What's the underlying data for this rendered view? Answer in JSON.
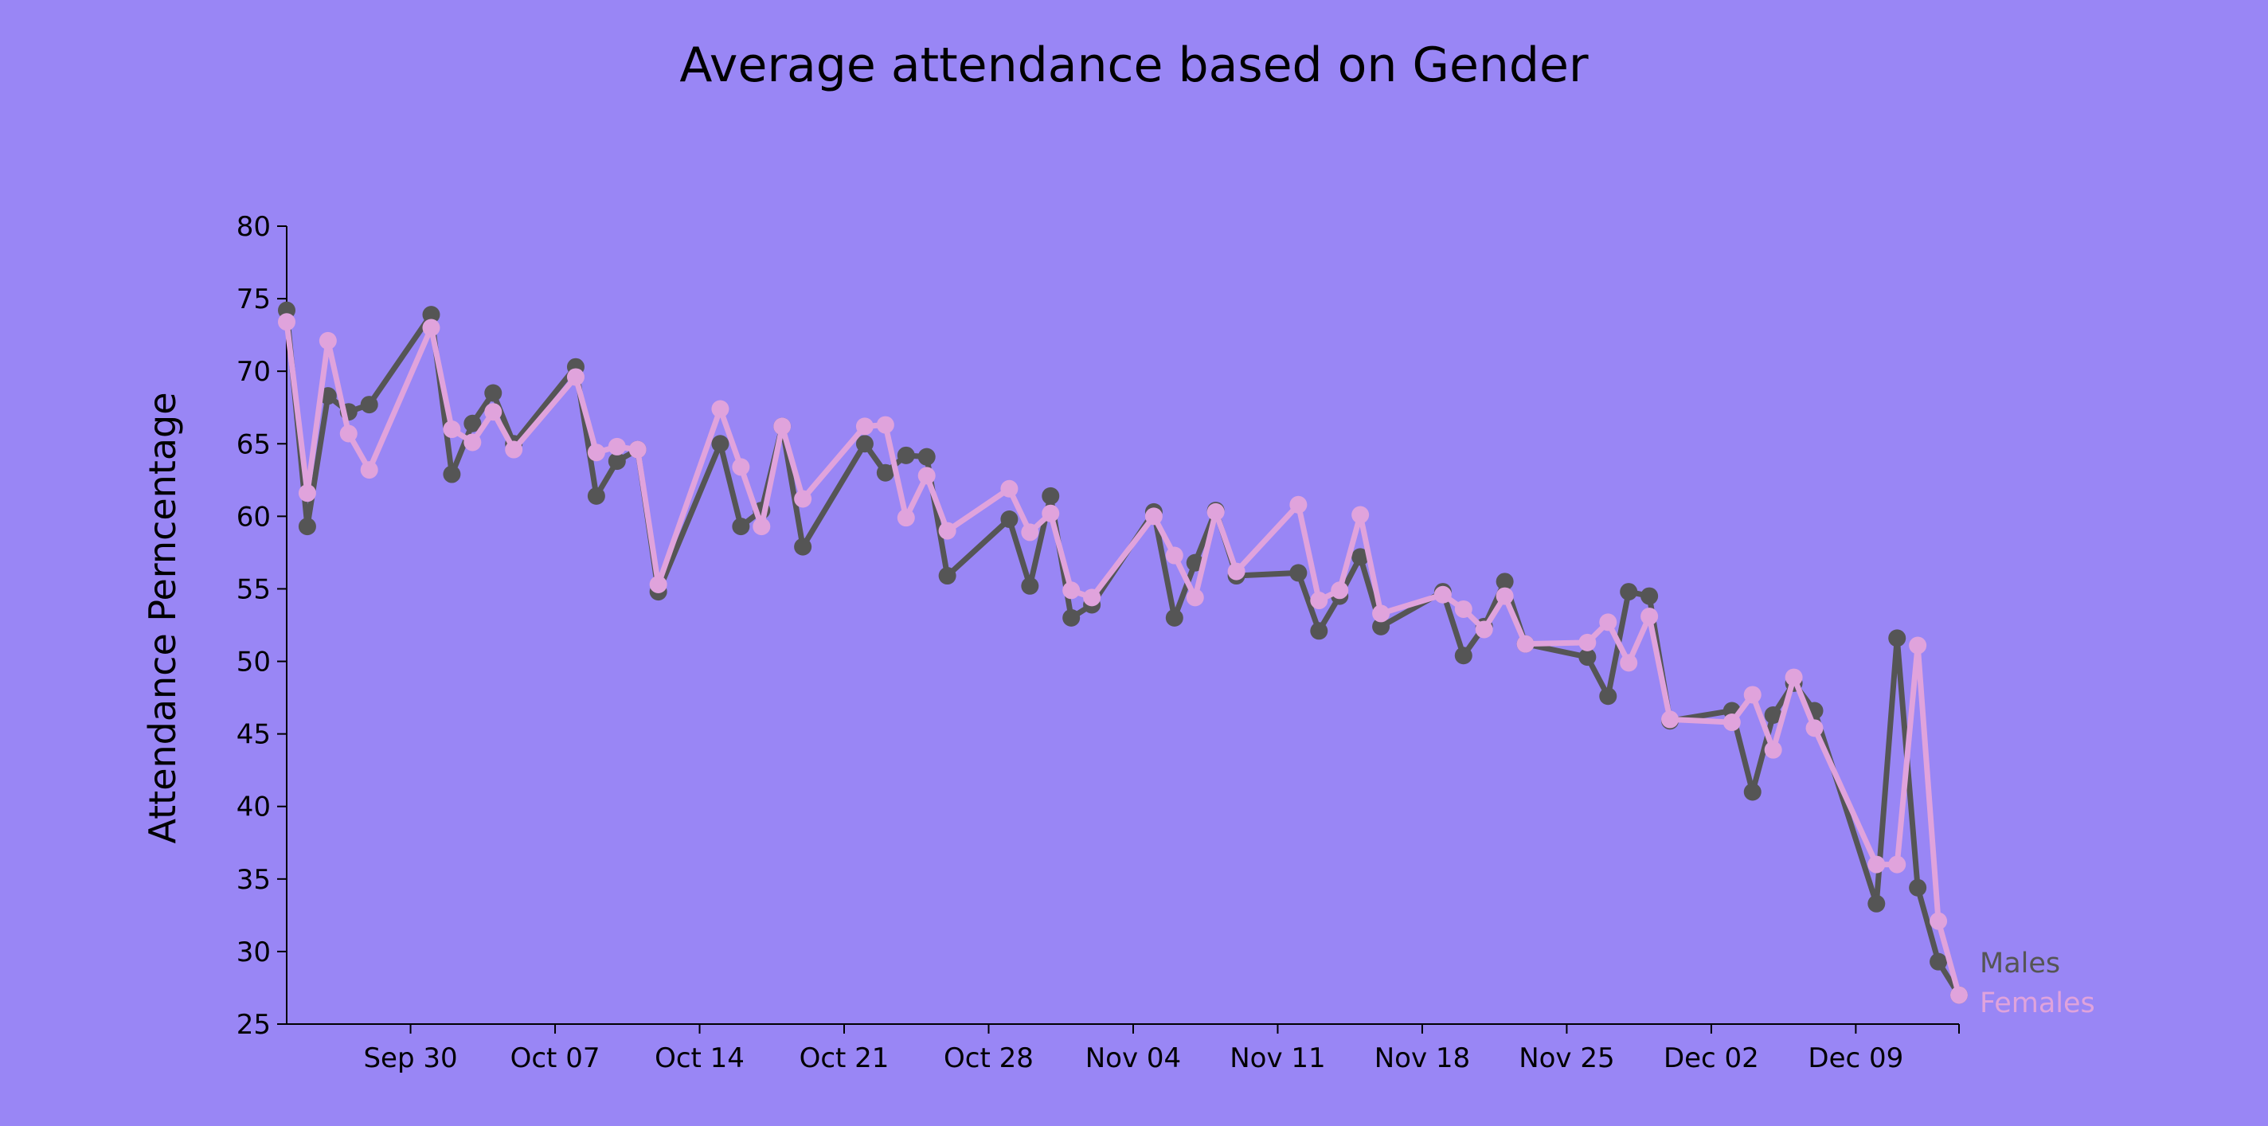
{
  "chart_data": {
    "type": "line",
    "title": "Average attendance based on Gender",
    "xlabel": "",
    "ylabel": "Attendance Perncentage",
    "ylim": [
      25,
      80
    ],
    "yticks": [
      25,
      30,
      35,
      40,
      45,
      50,
      55,
      60,
      65,
      70,
      75,
      80
    ],
    "xlim": [
      "2023-09-24",
      "2023-12-14"
    ],
    "xticks": [
      {
        "date": "2023-09-30",
        "label": "Sep 30"
      },
      {
        "date": "2023-10-07",
        "label": "Oct 07"
      },
      {
        "date": "2023-10-14",
        "label": "Oct 14"
      },
      {
        "date": "2023-10-21",
        "label": "Oct 21"
      },
      {
        "date": "2023-10-28",
        "label": "Oct 28"
      },
      {
        "date": "2023-11-04",
        "label": "Nov 04"
      },
      {
        "date": "2023-11-11",
        "label": "Nov 11"
      },
      {
        "date": "2023-11-18",
        "label": "Nov 18"
      },
      {
        "date": "2023-11-25",
        "label": "Nov 25"
      },
      {
        "date": "2023-12-02",
        "label": "Dec 02"
      },
      {
        "date": "2023-12-09",
        "label": "Dec 09"
      }
    ],
    "grid": false,
    "legend": "right-end",
    "x": [
      "2023-09-24",
      "2023-09-25",
      "2023-09-26",
      "2023-09-27",
      "2023-09-28",
      "2023-10-01",
      "2023-10-02",
      "2023-10-03",
      "2023-10-04",
      "2023-10-05",
      "2023-10-08",
      "2023-10-09",
      "2023-10-10",
      "2023-10-11",
      "2023-10-12",
      "2023-10-15",
      "2023-10-16",
      "2023-10-17",
      "2023-10-18",
      "2023-10-19",
      "2023-10-22",
      "2023-10-23",
      "2023-10-24",
      "2023-10-25",
      "2023-10-26",
      "2023-10-29",
      "2023-10-30",
      "2023-10-31",
      "2023-11-01",
      "2023-11-02",
      "2023-11-05",
      "2023-11-06",
      "2023-11-07",
      "2023-11-08",
      "2023-11-09",
      "2023-11-12",
      "2023-11-13",
      "2023-11-14",
      "2023-11-15",
      "2023-11-16",
      "2023-11-19",
      "2023-11-20",
      "2023-11-21",
      "2023-11-22",
      "2023-11-23",
      "2023-11-26",
      "2023-11-27",
      "2023-11-28",
      "2023-11-29",
      "2023-11-30",
      "2023-12-03",
      "2023-12-04",
      "2023-12-05",
      "2023-12-06",
      "2023-12-07",
      "2023-12-10",
      "2023-12-11",
      "2023-12-12",
      "2023-12-13",
      "2023-12-14"
    ],
    "series": [
      {
        "name": "Males",
        "color": "#555555",
        "values": [
          74.2,
          59.3,
          68.3,
          67.2,
          67.7,
          73.9,
          62.9,
          66.4,
          68.5,
          65.0,
          70.3,
          61.4,
          63.8,
          64.6,
          54.8,
          65.0,
          59.3,
          60.4,
          66.2,
          57.9,
          65.0,
          63.0,
          64.2,
          64.1,
          55.9,
          59.8,
          55.2,
          61.4,
          53.0,
          53.9,
          60.3,
          53.0,
          56.8,
          60.4,
          55.9,
          56.1,
          52.1,
          54.5,
          57.2,
          52.4,
          54.8,
          50.4,
          52.4,
          55.5,
          51.2,
          50.3,
          47.6,
          54.8,
          54.5,
          45.9,
          46.6,
          41.0,
          46.3,
          48.5,
          46.6,
          33.3,
          51.6,
          34.4,
          29.3,
          27.0
        ]
      },
      {
        "name": "Females",
        "color": "#e0a3dc",
        "values": [
          73.4,
          61.6,
          72.1,
          65.7,
          63.2,
          73.0,
          66.0,
          65.1,
          67.2,
          64.6,
          69.6,
          64.4,
          64.8,
          64.6,
          55.3,
          67.4,
          63.4,
          59.3,
          66.2,
          61.2,
          66.2,
          66.3,
          59.9,
          62.8,
          59.0,
          61.9,
          58.9,
          60.2,
          54.9,
          54.4,
          60.0,
          57.3,
          54.4,
          60.3,
          56.2,
          60.8,
          54.2,
          54.9,
          60.1,
          53.3,
          54.6,
          53.6,
          52.2,
          54.5,
          51.2,
          51.3,
          52.7,
          49.9,
          53.1,
          46.0,
          45.8,
          47.7,
          43.9,
          48.9,
          45.4,
          36.0,
          36.0,
          51.1,
          32.1,
          27.0
        ]
      }
    ]
  }
}
